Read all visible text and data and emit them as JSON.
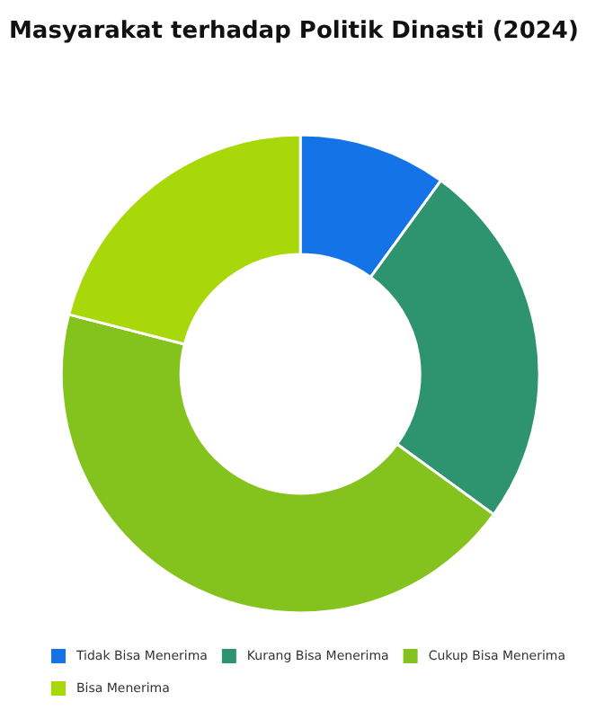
{
  "chart_data": {
    "type": "donut",
    "title": "Masyarakat terhadap Politik Dinasti (2024)",
    "categories": [
      "Tidak Bisa Menerima",
      "Kurang Bisa Menerima",
      "Cukup Bisa Menerima",
      "Bisa Menerima"
    ],
    "values": [
      10,
      25,
      44,
      21
    ],
    "colors": [
      "#1473e6",
      "#2e9470",
      "#84c31d",
      "#a8d80a"
    ],
    "legend": "bottom"
  }
}
